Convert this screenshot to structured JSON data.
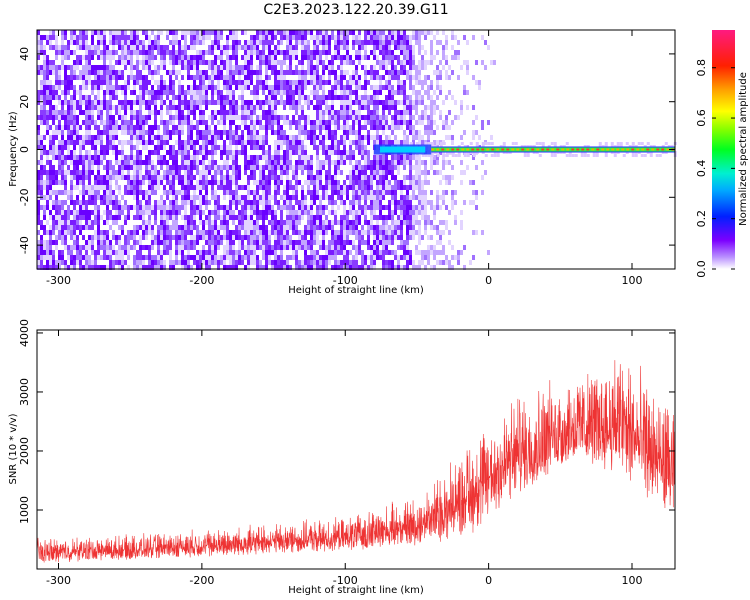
{
  "figure": {
    "title": "C2E3.2023.122.20.39.G11"
  },
  "chart_data": [
    {
      "type": "heatmap",
      "title": "C2E3.2023.122.20.39.G11",
      "xlabel": "Height of straight line (km)",
      "ylabel": "Frequency (Hz)",
      "xlim": [
        -315,
        130
      ],
      "ylim": [
        -50,
        50
      ],
      "x_ticks": [
        -300,
        -200,
        -100,
        0,
        100
      ],
      "y_ticks": [
        -40,
        -20,
        0,
        20,
        40
      ],
      "colorbar": {
        "label": "Normalized spectral amplitude",
        "range": [
          0.0,
          0.95
        ],
        "ticks": [
          0.0,
          0.2,
          0.4,
          0.6,
          0.8
        ]
      },
      "features": {
        "noise_region_x": [
          -315,
          -55
        ],
        "sparse_region_x": [
          -55,
          5
        ],
        "carrier_line_freq": 0,
        "carrier_line_x": [
          -80,
          130
        ],
        "carrier_amplitude": 0.85,
        "noise_amplitude": 0.05,
        "grid": false
      }
    },
    {
      "type": "line",
      "xlabel": "Height of straight line (km)",
      "ylabel": "SNR (10 * v/v)",
      "xlim": [
        -315,
        130
      ],
      "ylim": [
        0,
        4050
      ],
      "x_ticks": [
        -300,
        -200,
        -100,
        0,
        100
      ],
      "y_ticks": [
        1000,
        2000,
        3000,
        4000
      ],
      "color": "#ee3333",
      "grid": false,
      "envelope": {
        "x": [
          -315,
          -250,
          -200,
          -150,
          -100,
          -50,
          -30,
          -10,
          0,
          20,
          40,
          60,
          80,
          90,
          100,
          110,
          120,
          130
        ],
        "lower": [
          100,
          150,
          200,
          250,
          300,
          400,
          450,
          600,
          800,
          1200,
          1500,
          1800,
          1700,
          1500,
          1400,
          1200,
          1000,
          900
        ],
        "upper": [
          550,
          600,
          700,
          800,
          900,
          1300,
          1800,
          2400,
          2700,
          3100,
          3300,
          3400,
          3600,
          4000,
          3700,
          3300,
          3100,
          2900
        ]
      }
    }
  ]
}
